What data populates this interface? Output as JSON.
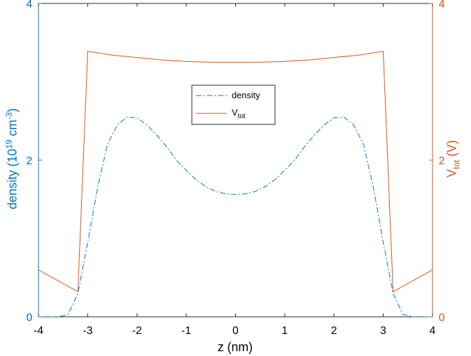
{
  "chart_data": {
    "type": "line",
    "xlabel": "z (nm)",
    "ylabel_left": {
      "main": "density (10",
      "sup1": "19",
      "mid": " cm",
      "sup2": "-3",
      "end": ")"
    },
    "ylabel_right": {
      "main": "V",
      "sub": "tot",
      "end": " (V)"
    },
    "xlim": [
      -4,
      4
    ],
    "ylim_left": [
      0,
      4
    ],
    "ylim_right": [
      0,
      4
    ],
    "x_ticks": [
      "-4",
      "-3",
      "-2",
      "-1",
      "0",
      "1",
      "2",
      "3",
      "4"
    ],
    "y_ticks_left": [
      "0",
      "2",
      "4"
    ],
    "y_ticks_right": [
      "0",
      "2",
      "4"
    ],
    "grid": false,
    "legend_placement": "center",
    "colors": {
      "left_axis": "#0072bd",
      "right_axis": "#d95319",
      "density": "#0072bd",
      "vtot": "#d95319",
      "box": "#262626"
    },
    "series": [
      {
        "name": "density",
        "axis": "left",
        "style": "dashdot",
        "x": [
          -4.0,
          -3.6,
          -3.4,
          -3.2,
          -3.0,
          -2.8,
          -2.6,
          -2.4,
          -2.2,
          -2.0,
          -1.8,
          -1.6,
          -1.4,
          -1.2,
          -1.0,
          -0.8,
          -0.6,
          -0.4,
          -0.2,
          0.0,
          0.2,
          0.4,
          0.6,
          0.8,
          1.0,
          1.2,
          1.4,
          1.6,
          1.8,
          2.0,
          2.2,
          2.4,
          2.6,
          2.8,
          3.0,
          3.2,
          3.4,
          3.6,
          4.0
        ],
        "y": [
          0.0,
          0.0,
          0.03,
          0.3,
          0.95,
          1.65,
          2.2,
          2.45,
          2.55,
          2.54,
          2.45,
          2.32,
          2.17,
          2.0,
          1.87,
          1.75,
          1.66,
          1.6,
          1.57,
          1.56,
          1.57,
          1.6,
          1.66,
          1.75,
          1.87,
          2.0,
          2.17,
          2.32,
          2.45,
          2.54,
          2.55,
          2.45,
          2.2,
          1.65,
          0.95,
          0.3,
          0.03,
          0.0,
          0.0
        ]
      },
      {
        "name": "V",
        "name_sub": "tot",
        "axis": "right",
        "style": "solid",
        "x": [
          -4.0,
          -3.2,
          -3.0,
          -2.5,
          -2.0,
          -1.5,
          -1.0,
          -0.5,
          0.0,
          0.5,
          1.0,
          1.5,
          2.0,
          2.5,
          3.0,
          3.2,
          4.0
        ],
        "y": [
          0.6,
          0.32,
          3.39,
          3.34,
          3.31,
          3.28,
          3.26,
          3.25,
          3.25,
          3.25,
          3.26,
          3.28,
          3.31,
          3.34,
          3.39,
          0.32,
          0.6
        ]
      }
    ]
  }
}
